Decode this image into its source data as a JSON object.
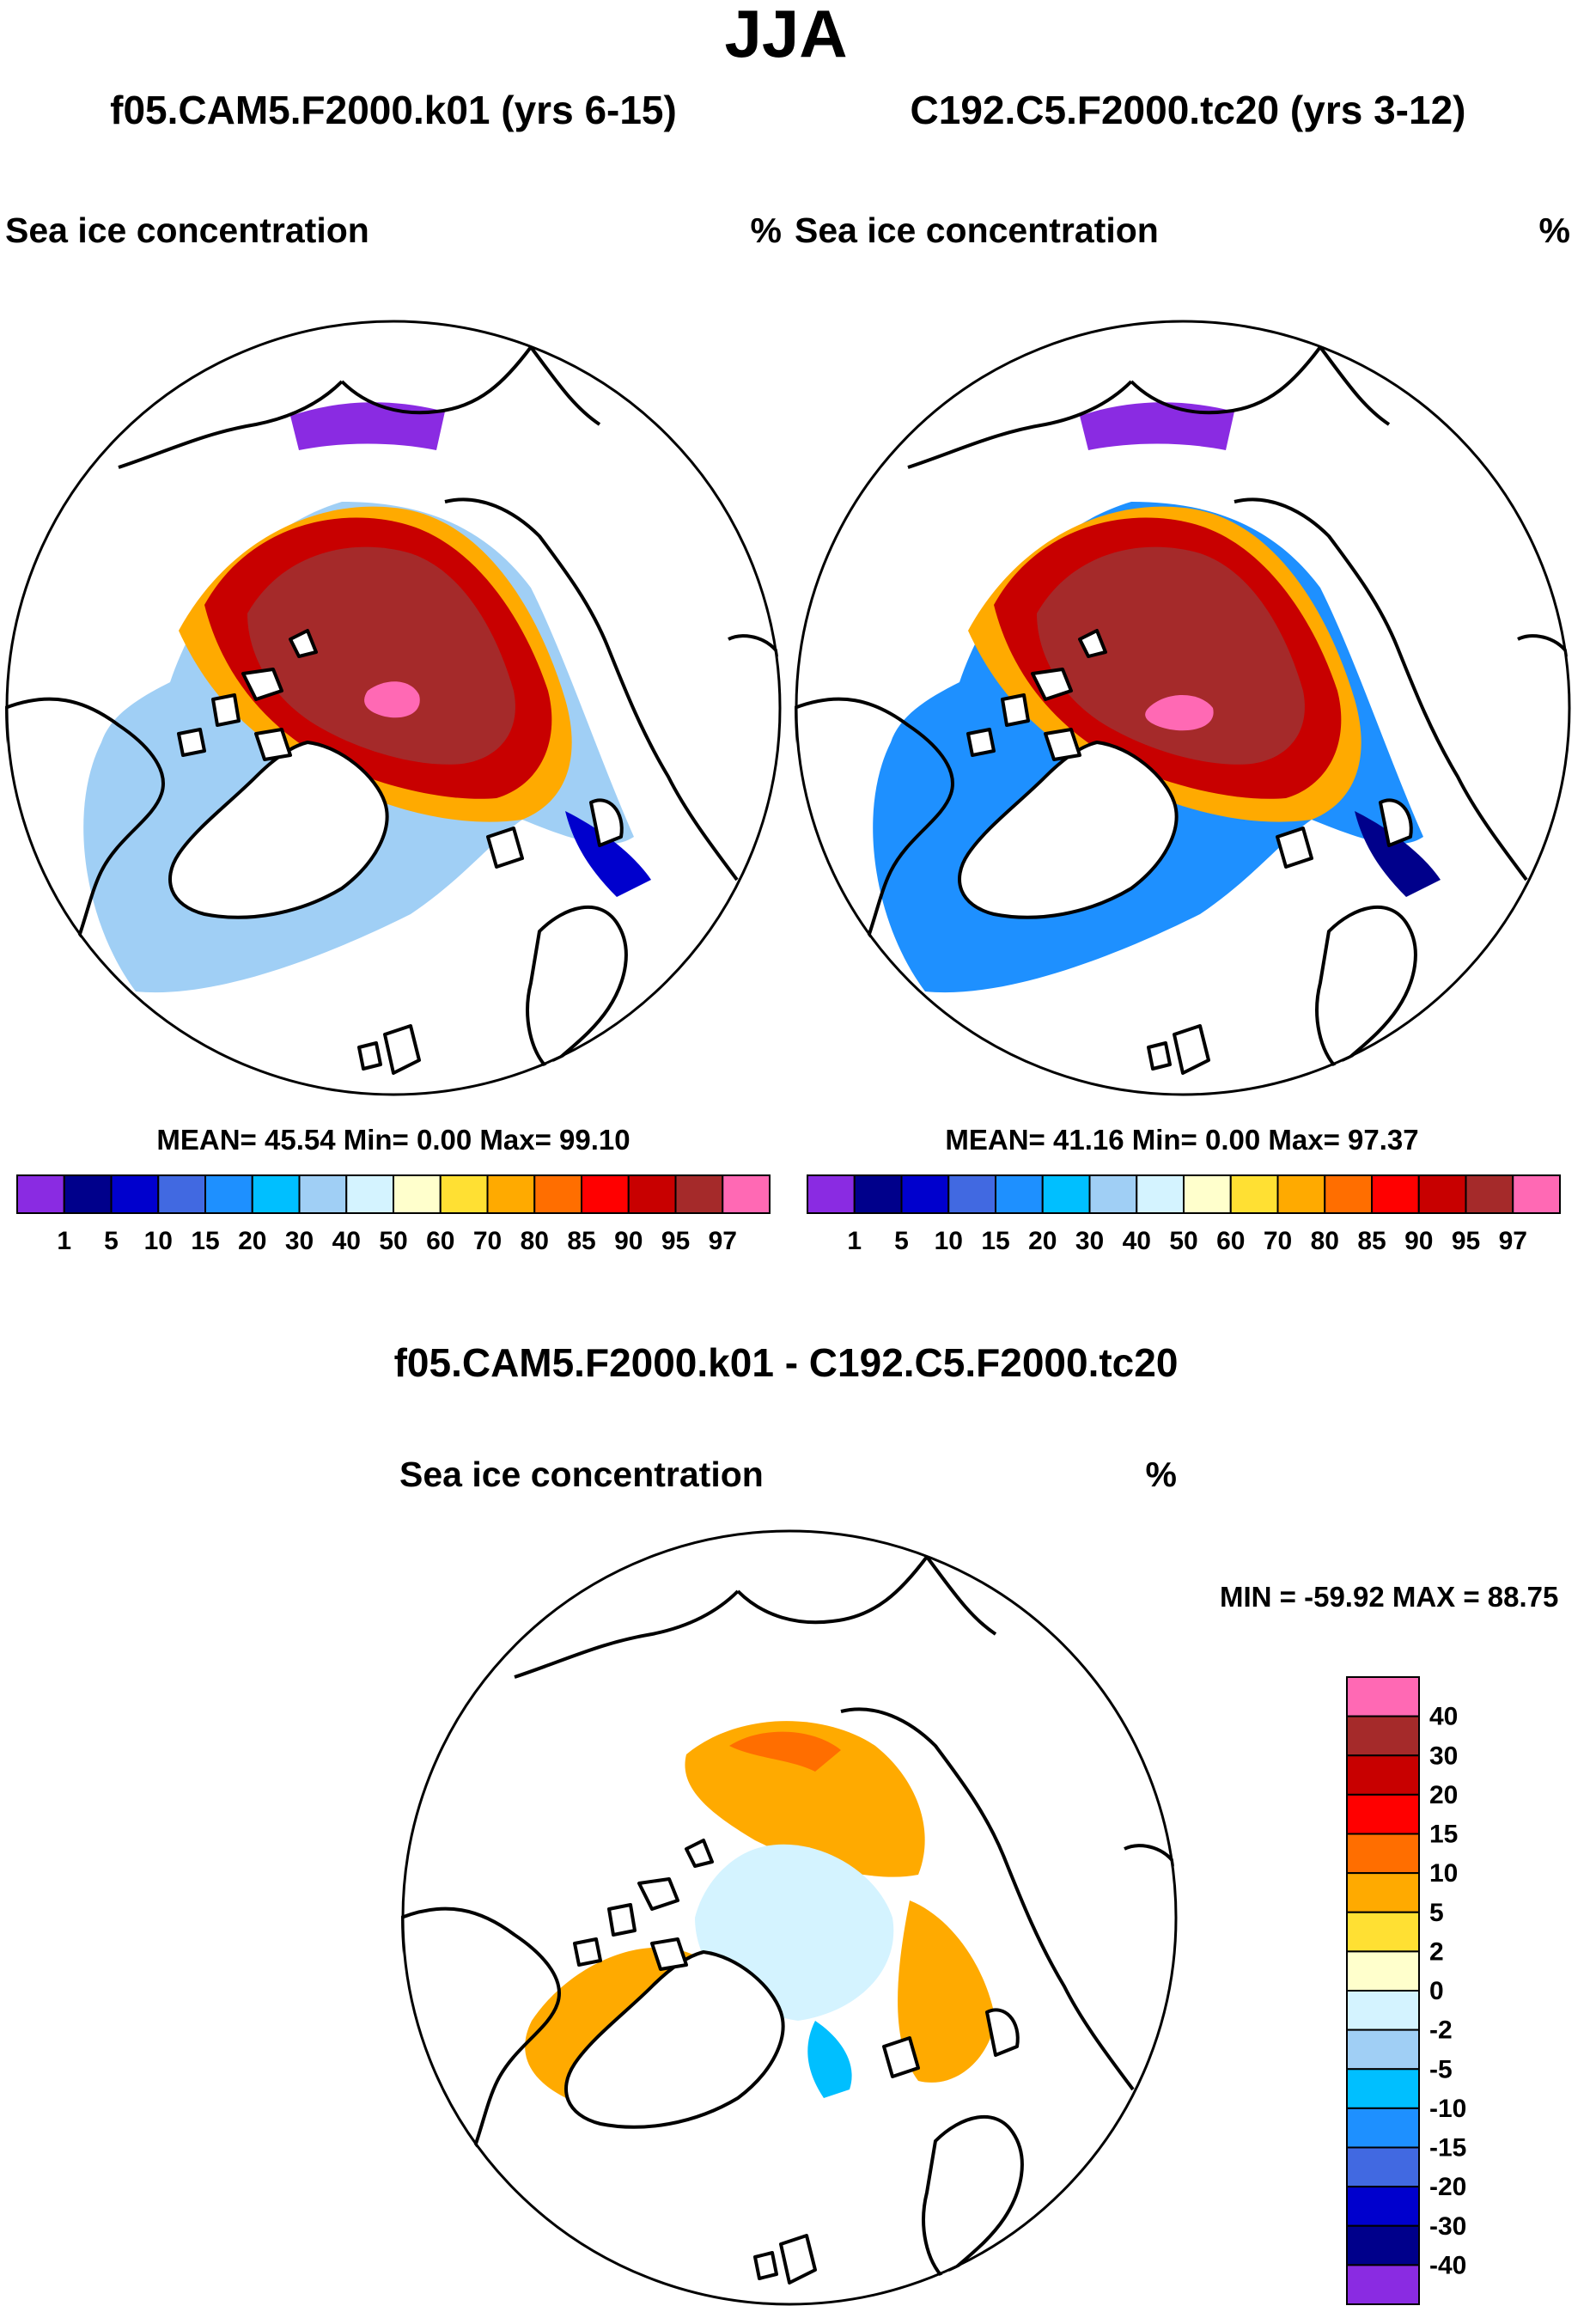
{
  "figure": {
    "season": "JJA",
    "colors": {
      "ocean": "#ffffff",
      "coast": "#000000",
      "outline": "#000000"
    }
  },
  "panels": [
    {
      "id": "left",
      "title": "f05.CAM5.F2000.k01 (yrs 6-15)",
      "field": "Sea ice concentration",
      "units": "%",
      "stats": "MEAN=  45.54  Min=   0.00  Max=  99.10",
      "levels": [
        "1",
        "5",
        "10",
        "15",
        "20",
        "30",
        "40",
        "50",
        "60",
        "70",
        "80",
        "85",
        "90",
        "95",
        "97"
      ],
      "colors": [
        "#8a2be2",
        "#00008b",
        "#0000cd",
        "#4169e1",
        "#1e90ff",
        "#00bfff",
        "#a0cff5",
        "#d4f3ff",
        "#ffffcc",
        "#ffe033",
        "#ffaa00",
        "#ff6e00",
        "#ff0000",
        "#c80000",
        "#a52a2a",
        "#ff69b4"
      ]
    },
    {
      "id": "right",
      "title": "C192.C5.F2000.tc20 (yrs 3-12)",
      "field": "Sea ice concentration",
      "units": "%",
      "stats": "MEAN=  41.16  Min=   0.00  Max=  97.37",
      "levels": [
        "1",
        "5",
        "10",
        "15",
        "20",
        "30",
        "40",
        "50",
        "60",
        "70",
        "80",
        "85",
        "90",
        "95",
        "97"
      ],
      "colors": [
        "#8a2be2",
        "#00008b",
        "#0000cd",
        "#4169e1",
        "#1e90ff",
        "#00bfff",
        "#a0cff5",
        "#d4f3ff",
        "#ffffcc",
        "#ffe033",
        "#ffaa00",
        "#ff6e00",
        "#ff0000",
        "#c80000",
        "#a52a2a",
        "#ff69b4"
      ]
    }
  ],
  "diff": {
    "title": "f05.CAM5.F2000.k01 - C192.C5.F2000.tc20",
    "field": "Sea ice concentration",
    "units": "%",
    "stats": "MIN = -59.92 MAX =  88.75",
    "levels": [
      "40",
      "30",
      "20",
      "15",
      "10",
      "5",
      "2",
      "0",
      "-2",
      "-5",
      "-10",
      "-15",
      "-20",
      "-30",
      "-40"
    ],
    "colors": [
      "#ff69b4",
      "#a52a2a",
      "#c80000",
      "#ff0000",
      "#ff6e00",
      "#ffaa00",
      "#ffe033",
      "#ffffcc",
      "#d4f3ff",
      "#a0cff5",
      "#00bfff",
      "#1e90ff",
      "#4169e1",
      "#0000cd",
      "#00008b",
      "#8a2be2"
    ]
  }
}
